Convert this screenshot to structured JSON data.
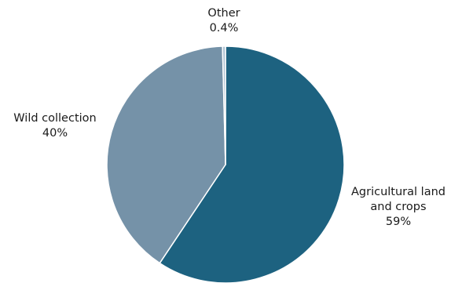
{
  "chart_data": {
    "type": "pie",
    "title": "",
    "legend": "none",
    "slices": [
      {
        "label": "Agricultural land and crops",
        "label_lines": [
          "Agricultural land",
          "and crops"
        ],
        "value": 59,
        "value_label": "59%",
        "color": "#1d6280"
      },
      {
        "label": "Wild collection",
        "label_lines": [
          "Wild collection"
        ],
        "value": 40,
        "value_label": "40%",
        "color": "#7592a8"
      },
      {
        "label": "Other",
        "label_lines": [
          "Other"
        ],
        "value": 0.4,
        "value_label": "0.4%",
        "color": "#b0c3d3"
      }
    ],
    "slice_border_color": "#ffffff"
  }
}
